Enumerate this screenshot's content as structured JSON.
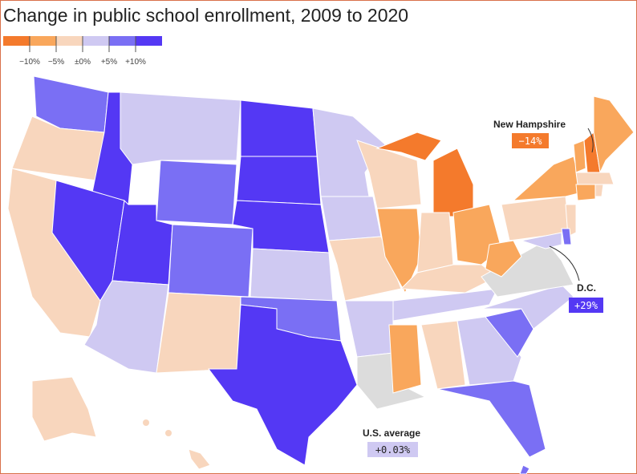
{
  "header": {
    "title": "Change in public school enrollment, 2009 to 2020"
  },
  "legend": {
    "colors": [
      "#f47a2c",
      "#f9a75c",
      "#f8d6bd",
      "#cfc9f2",
      "#7a6ff4",
      "#5438f4"
    ],
    "labels": [
      "−10%",
      "−5%",
      "±0%",
      "+5%",
      "+10%"
    ]
  },
  "annotations": [
    {
      "label": "New Hampshire",
      "value_label": "−14%",
      "color": "#f47a2c"
    },
    {
      "label": "D.C.",
      "value_label": "+29%",
      "color": "#5438f4"
    },
    {
      "label": "U.S. average",
      "value_label": "+0.03%",
      "color": "#cfc9f2"
    }
  ]
}
